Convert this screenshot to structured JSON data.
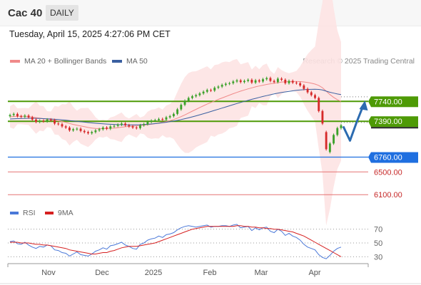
{
  "header": {
    "title": "Cac 40",
    "period": "DAILY",
    "timestamp": "Tuesday, April 15, 2025 4:27:06 PM CET"
  },
  "legend": {
    "ma20_label": "MA 20 + Bollinger Bands",
    "ma50_label": "MA 50",
    "credit": "Research © 2025 Trading Central"
  },
  "rsi_legend": {
    "rsi_label": "RSI",
    "ma9_label": "9MA"
  },
  "colors": {
    "bull": "#3ba12a",
    "bear": "#d62a2a",
    "ma20": "#f08a8a",
    "ma50": "#3a5fa0",
    "bollinger_fill": "#fde3e3",
    "resistance": "#4e9a06",
    "support": "#1f6fe0",
    "target": "#e57373",
    "arrow": "#2c6bb0",
    "rsi": "#4a78d8",
    "rsi_ma": "#d62020"
  },
  "chart_data": [
    {
      "type": "candlestick",
      "title": "Cac 40",
      "period": "DAILY",
      "x_labels": [
        "Nov",
        "Dec",
        "2025",
        "Feb",
        "Mar",
        "Apr"
      ],
      "ylim": [
        5990,
        8320
      ],
      "price_levels": [
        {
          "value": 7740,
          "label": "7740.00",
          "style": "resistance"
        },
        {
          "value": 7390,
          "label": "7390.00",
          "style": "resistance"
        },
        {
          "value": 6760,
          "label": "6760.00",
          "style": "support"
        },
        {
          "value": 6500,
          "label": "6500.00",
          "style": "target"
        },
        {
          "value": 6100,
          "label": "6100.00",
          "style": "target"
        }
      ],
      "projection": {
        "path": [
          7300,
          7050,
          7380,
          7680
        ],
        "description": "dip then rise arrow"
      },
      "closes": [
        7500,
        7520,
        7480,
        7470,
        7490,
        7460,
        7420,
        7380,
        7400,
        7390,
        7420,
        7410,
        7350,
        7340,
        7300,
        7280,
        7230,
        7250,
        7260,
        7220,
        7200,
        7180,
        7200,
        7230,
        7250,
        7280,
        7260,
        7300,
        7310,
        7330,
        7350,
        7320,
        7300,
        7280,
        7270,
        7320,
        7340,
        7380,
        7400,
        7410,
        7430,
        7420,
        7460,
        7480,
        7520,
        7600,
        7680,
        7750,
        7800,
        7830,
        7850,
        7880,
        7910,
        7940,
        7930,
        7980,
        8000,
        8030,
        8050,
        8060,
        8090,
        8110,
        8080,
        8100,
        8120,
        8070,
        8110,
        8090,
        8130,
        8150,
        8100,
        8080,
        8140,
        8120,
        8060,
        8100,
        8070,
        8060,
        8020,
        7960,
        7900,
        7850,
        7800,
        7570,
        7350,
        6900,
        7000,
        7150,
        7270,
        7320
      ],
      "opens": [
        7480,
        7500,
        7520,
        7480,
        7470,
        7490,
        7460,
        7420,
        7380,
        7400,
        7390,
        7420,
        7410,
        7350,
        7340,
        7300,
        7280,
        7230,
        7250,
        7260,
        7220,
        7200,
        7180,
        7200,
        7230,
        7250,
        7280,
        7260,
        7300,
        7310,
        7330,
        7350,
        7320,
        7300,
        7280,
        7270,
        7320,
        7340,
        7380,
        7400,
        7410,
        7430,
        7420,
        7460,
        7480,
        7520,
        7600,
        7680,
        7750,
        7800,
        7830,
        7850,
        7880,
        7910,
        7940,
        7930,
        7980,
        8000,
        8030,
        8050,
        8060,
        8090,
        8110,
        8080,
        8100,
        8120,
        8070,
        8110,
        8090,
        8130,
        8150,
        8100,
        8080,
        8140,
        8120,
        8060,
        8100,
        8070,
        8060,
        8020,
        7960,
        7900,
        7850,
        7800,
        7570,
        7200,
        6850,
        7000,
        7150,
        7270
      ],
      "ma20": [
        7470,
        7475,
        7478,
        7480,
        7478,
        7472,
        7465,
        7455,
        7445,
        7436,
        7428,
        7420,
        7410,
        7398,
        7385,
        7370,
        7352,
        7336,
        7322,
        7308,
        7295,
        7282,
        7272,
        7265,
        7262,
        7262,
        7264,
        7268,
        7272,
        7278,
        7286,
        7294,
        7300,
        7305,
        7310,
        7316,
        7322,
        7330,
        7338,
        7348,
        7360,
        7372,
        7386,
        7402,
        7420,
        7445,
        7472,
        7502,
        7535,
        7568,
        7600,
        7632,
        7662,
        7692,
        7720,
        7748,
        7775,
        7800,
        7825,
        7850,
        7875,
        7898,
        7920,
        7940,
        7960,
        7978,
        7995,
        8010,
        8024,
        8038,
        8050,
        8060,
        8070,
        8078,
        8084,
        8088,
        8090,
        8090,
        8088,
        8082,
        8072,
        8060,
        8045,
        8020,
        7980,
        7920,
        7860,
        7810,
        7770,
        7740
      ],
      "ma50": [
        7430,
        7434,
        7437,
        7440,
        7442,
        7443,
        7443,
        7442,
        7440,
        7437,
        7434,
        7430,
        7426,
        7421,
        7416,
        7410,
        7403,
        7396,
        7389,
        7382,
        7375,
        7368,
        7362,
        7356,
        7350,
        7346,
        7342,
        7338,
        7335,
        7332,
        7330,
        7329,
        7328,
        7328,
        7329,
        7331,
        7334,
        7338,
        7343,
        7349,
        7356,
        7364,
        7373,
        7383,
        7394,
        7406,
        7420,
        7435,
        7451,
        7468,
        7486,
        7504,
        7523,
        7542,
        7562,
        7582,
        7602,
        7622,
        7642,
        7662,
        7682,
        7702,
        7721,
        7740,
        7758,
        7776,
        7793,
        7810,
        7826,
        7842,
        7857,
        7871,
        7884,
        7896,
        7907,
        7917,
        7926,
        7934,
        7941,
        7946,
        7950,
        7952,
        7953,
        7950,
        7940,
        7920,
        7900,
        7885,
        7870,
        7860
      ]
    },
    {
      "type": "line",
      "title": "RSI",
      "ylim": [
        20,
        80
      ],
      "y_ticks": [
        70,
        50,
        30
      ],
      "series": [
        {
          "name": "RSI",
          "values": [
            52,
            53,
            49,
            48,
            51,
            47,
            44,
            42,
            45,
            44,
            47,
            46,
            40,
            39,
            36,
            35,
            31,
            34,
            37,
            33,
            32,
            31,
            34,
            38,
            40,
            43,
            41,
            46,
            47,
            49,
            51,
            47,
            45,
            42,
            41,
            48,
            50,
            54,
            56,
            57,
            60,
            58,
            62,
            63,
            65,
            69,
            72,
            74,
            75,
            74,
            73,
            74,
            75,
            76,
            73,
            74,
            74,
            75,
            75,
            74,
            76,
            77,
            72,
            73,
            74,
            68,
            72,
            69,
            72,
            73,
            67,
            65,
            70,
            67,
            61,
            64,
            60,
            58,
            54,
            48,
            44,
            42,
            40,
            33,
            29,
            27,
            32,
            38,
            42,
            44
          ]
        },
        {
          "name": "9MA",
          "values": [
            51,
            51,
            51,
            50,
            50,
            50,
            49,
            48,
            48,
            47,
            47,
            46,
            45,
            44,
            43,
            42,
            40,
            39,
            38,
            37,
            36,
            35,
            34,
            34,
            35,
            36,
            36,
            38,
            39,
            41,
            43,
            44,
            45,
            45,
            45,
            46,
            47,
            48,
            49,
            50,
            52,
            54,
            56,
            58,
            60,
            62,
            64,
            66,
            68,
            70,
            71,
            72,
            73,
            74,
            74,
            74,
            74,
            74,
            74,
            74,
            74,
            75,
            75,
            74,
            74,
            73,
            73,
            72,
            72,
            71,
            71,
            70,
            70,
            69,
            68,
            67,
            66,
            64,
            62,
            60,
            57,
            54,
            51,
            48,
            45,
            42,
            39,
            36,
            33,
            30
          ]
        }
      ]
    }
  ]
}
